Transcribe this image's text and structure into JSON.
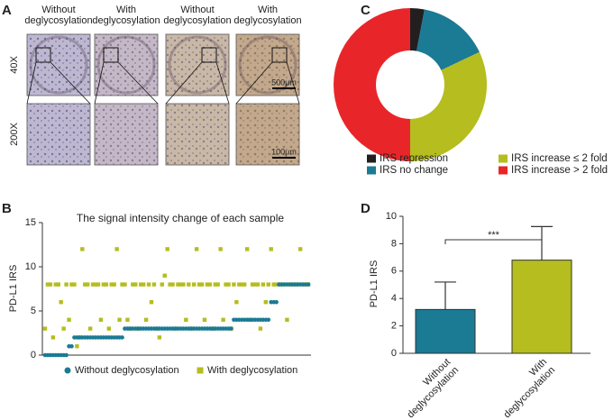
{
  "figure": {
    "panel_labels": [
      "A",
      "B",
      "C",
      "D"
    ],
    "columns": [
      [
        "Without",
        "deglycosylation"
      ],
      [
        "With",
        "deglycosylation"
      ],
      [
        "Without",
        "deglycosylation"
      ],
      [
        "With",
        "deglycosylation"
      ]
    ],
    "rows": [
      "40X",
      "200X"
    ],
    "scale_bars": [
      "500μm",
      "100μm"
    ]
  },
  "chart_data": [
    {
      "type": "scatter",
      "title": "The signal intensity change of each sample",
      "y_label": "PD-L1 IRS",
      "ylim": [
        0,
        15
      ],
      "yticks": [
        0,
        5,
        10,
        15
      ],
      "series": [
        {
          "name": "Without deglycosylation",
          "color": "#1b7a94",
          "values": [
            0,
            0,
            0,
            0,
            0,
            0,
            0,
            0,
            0,
            1,
            1,
            2,
            2,
            2,
            2,
            2,
            2,
            2,
            2,
            2,
            2,
            2,
            2,
            2,
            2,
            2,
            2,
            2,
            2,
            2,
            3,
            3,
            3,
            3,
            3,
            3,
            3,
            3,
            3,
            3,
            3,
            3,
            3,
            3,
            3,
            3,
            3,
            3,
            3,
            3,
            3,
            3,
            3,
            3,
            3,
            3,
            3,
            3,
            3,
            3,
            3,
            3,
            3,
            3,
            3,
            3,
            3,
            3,
            3,
            3,
            3,
            4,
            4,
            4,
            4,
            4,
            4,
            4,
            4,
            4,
            4,
            4,
            4,
            4,
            4,
            6,
            6,
            6,
            8,
            8,
            8,
            8,
            8,
            8,
            8,
            8,
            8,
            8,
            8,
            8
          ]
        },
        {
          "name": "With deglycosylation",
          "color": "#b5bd1f",
          "values": [
            3,
            8,
            8,
            2,
            8,
            8,
            6,
            3,
            8,
            4,
            8,
            8,
            1,
            2,
            12,
            8,
            8,
            3,
            8,
            8,
            8,
            4,
            8,
            8,
            3,
            8,
            8,
            12,
            4,
            8,
            8,
            4,
            3,
            8,
            8,
            3,
            8,
            8,
            4,
            8,
            6,
            8,
            3,
            2,
            8,
            9,
            12,
            8,
            8,
            3,
            8,
            8,
            8,
            4,
            8,
            3,
            8,
            12,
            8,
            8,
            4,
            8,
            8,
            3,
            8,
            8,
            12,
            4,
            8,
            8,
            3,
            8,
            6,
            8,
            8,
            8,
            12,
            4,
            8,
            8,
            8,
            3,
            8,
            6,
            8,
            12,
            8,
            8,
            8,
            8,
            8,
            4,
            8,
            8,
            8,
            8,
            12,
            8,
            8,
            8
          ]
        }
      ]
    },
    {
      "type": "donut",
      "categories": [
        "IRS repression",
        "IRS no change",
        "IRS increase ≤ 2 fold",
        "IRS increase > 2 fold"
      ],
      "values": [
        3,
        15,
        32,
        50
      ],
      "colors": [
        "#231f20",
        "#1b7a94",
        "#b5bd1f",
        "#e8262a"
      ]
    },
    {
      "type": "bar",
      "y_label": "PD-L1 IRS",
      "categories": [
        [
          "Without",
          "deglycosylation"
        ],
        [
          "With",
          "deglycosylation"
        ]
      ],
      "values": [
        3.2,
        6.8
      ],
      "errors": [
        2.0,
        2.45
      ],
      "colors": [
        "#1b7a94",
        "#b5bd1f"
      ],
      "ylim": [
        0,
        10
      ],
      "yticks": [
        0,
        2,
        4,
        6,
        8,
        10
      ],
      "annotation": "***"
    }
  ]
}
